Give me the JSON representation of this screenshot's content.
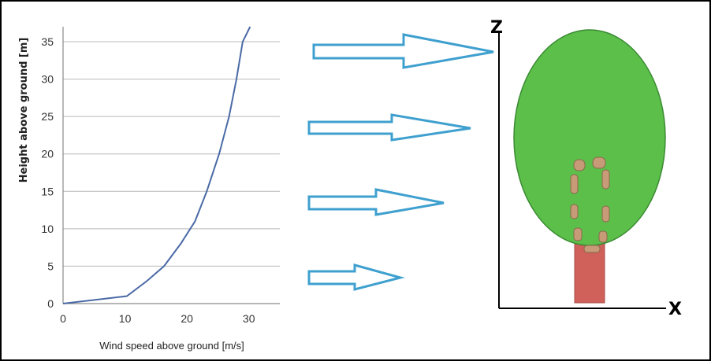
{
  "chart_data": {
    "type": "line",
    "title": "",
    "xlabel": "Wind speed above ground [m/s]",
    "ylabel": "Height above ground [m]",
    "xlim": [
      0,
      35
    ],
    "ylim": [
      0,
      37
    ],
    "x_ticks": [
      "0",
      "10",
      "20",
      "30"
    ],
    "x_tick_values": [
      0,
      10,
      20,
      30
    ],
    "y_ticks": [
      "0",
      "5",
      "10",
      "15",
      "20",
      "25",
      "30",
      "35"
    ],
    "y_tick_values": [
      0,
      5,
      10,
      15,
      20,
      25,
      30,
      35
    ],
    "grid": "horizontal",
    "series": [
      {
        "color": "#4a6aa6",
        "points": [
          {
            "x": 0,
            "y": 0
          },
          {
            "x": 10.3,
            "y": 1
          },
          {
            "x": 13.5,
            "y": 3
          },
          {
            "x": 16.3,
            "y": 5
          },
          {
            "x": 19.0,
            "y": 8
          },
          {
            "x": 21.3,
            "y": 11
          },
          {
            "x": 23.2,
            "y": 15
          },
          {
            "x": 25.2,
            "y": 20
          },
          {
            "x": 26.8,
            "y": 25
          },
          {
            "x": 28.0,
            "y": 30
          },
          {
            "x": 29.0,
            "y": 35
          },
          {
            "x": 30.2,
            "y": 37
          }
        ]
      }
    ]
  },
  "diagram": {
    "z_label": "Z",
    "x_label": "X",
    "canopy_color": "#5cbf4a",
    "trunk_color": "#d0605a",
    "arrow_color": "#3fa0cf",
    "arrow_count": 4
  }
}
